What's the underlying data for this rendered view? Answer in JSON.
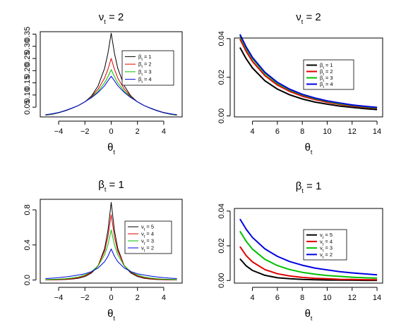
{
  "chart_data": [
    {
      "type": "line",
      "title": {
        "sym": "ν",
        "sub": "t",
        "rest": " = 2"
      },
      "xlabel": {
        "sym": "θ",
        "sub": "t"
      },
      "xlim": [
        -5.4,
        5.4
      ],
      "ylim": [
        0.01,
        0.36
      ],
      "xticks": [
        -4,
        -2,
        0,
        2,
        4
      ],
      "yticks": [
        0.05,
        0.1,
        0.15,
        0.2,
        0.25,
        0.3,
        0.35
      ],
      "ytick_labels": [
        "0.05",
        "0.10",
        "0.15",
        "0.20",
        "0.25",
        "0.30",
        "0.35"
      ],
      "legend": {
        "position": "center-right",
        "sym": "β",
        "sub": "t"
      },
      "x": [
        -5,
        -4.5,
        -4,
        -3.5,
        -3,
        -2.5,
        -2,
        -1.5,
        -1,
        -0.5,
        -0.25,
        0,
        0.25,
        0.5,
        1,
        1.5,
        2,
        2.5,
        3,
        3.5,
        4,
        4.5,
        5
      ],
      "series": [
        {
          "name": "= 1",
          "color": "#000000",
          "width": 1,
          "values": [
            0.017,
            0.021,
            0.027,
            0.035,
            0.045,
            0.057,
            0.072,
            0.096,
            0.137,
            0.21,
            0.27,
            0.354,
            0.27,
            0.21,
            0.137,
            0.096,
            0.072,
            0.057,
            0.045,
            0.035,
            0.027,
            0.021,
            0.017
          ]
        },
        {
          "name": "= 2",
          "color": "#df0000",
          "width": 1,
          "values": [
            0.018,
            0.022,
            0.028,
            0.036,
            0.046,
            0.057,
            0.072,
            0.093,
            0.124,
            0.17,
            0.205,
            0.25,
            0.205,
            0.17,
            0.124,
            0.093,
            0.072,
            0.057,
            0.046,
            0.036,
            0.028,
            0.022,
            0.018
          ]
        },
        {
          "name": "= 3",
          "color": "#00c000",
          "width": 1,
          "values": [
            0.018,
            0.022,
            0.028,
            0.036,
            0.046,
            0.057,
            0.072,
            0.091,
            0.115,
            0.15,
            0.175,
            0.204,
            0.175,
            0.15,
            0.115,
            0.091,
            0.072,
            0.057,
            0.046,
            0.036,
            0.028,
            0.022,
            0.018
          ]
        },
        {
          "name": "= 4",
          "color": "#0000e0",
          "width": 1,
          "values": [
            0.019,
            0.023,
            0.028,
            0.036,
            0.046,
            0.057,
            0.072,
            0.089,
            0.11,
            0.138,
            0.158,
            0.177,
            0.158,
            0.138,
            0.11,
            0.089,
            0.072,
            0.057,
            0.046,
            0.036,
            0.028,
            0.023,
            0.019
          ]
        }
      ]
    },
    {
      "type": "line",
      "title": {
        "sym": "ν",
        "sub": "t",
        "rest": " = 2"
      },
      "xlabel": {
        "sym": "θ",
        "sub": "t"
      },
      "xlim": [
        2.55,
        14.45
      ],
      "ylim": [
        -0.0005,
        0.0403
      ],
      "xticks": [
        4,
        6,
        8,
        10,
        12,
        14
      ],
      "yticks": [
        0.0,
        0.02,
        0.04
      ],
      "ytick_labels": [
        "0.00",
        "0.02",
        "0.04"
      ],
      "legend": {
        "position": "center-right",
        "sym": "β",
        "sub": "t"
      },
      "x": [
        3,
        3.5,
        4,
        5,
        6,
        7,
        8,
        9,
        10,
        11,
        12,
        13,
        14
      ],
      "series": [
        {
          "name": "= 1",
          "color": "#000000",
          "width": 2,
          "values": [
            0.0354,
            0.0295,
            0.0248,
            0.0182,
            0.0139,
            0.0109,
            0.0088,
            0.0072,
            0.0061,
            0.0051,
            0.0044,
            0.0038,
            0.0033
          ]
        },
        {
          "name": "= 2",
          "color": "#df0000",
          "width": 2,
          "values": [
            0.0398,
            0.0333,
            0.0282,
            0.0209,
            0.016,
            0.0127,
            0.0102,
            0.0085,
            0.0071,
            0.006,
            0.0052,
            0.0045,
            0.004
          ]
        },
        {
          "name": "= 3",
          "color": "#00c000",
          "width": 2,
          "values": [
            0.0414,
            0.0348,
            0.0296,
            0.022,
            0.0169,
            0.0134,
            0.0109,
            0.009,
            0.0076,
            0.0064,
            0.0055,
            0.0048,
            0.0042
          ]
        },
        {
          "name": "= 4",
          "color": "#0000e0",
          "width": 2,
          "values": [
            0.0422,
            0.0356,
            0.0303,
            0.0226,
            0.0174,
            0.0138,
            0.0112,
            0.0093,
            0.0078,
            0.0067,
            0.0057,
            0.005,
            0.0044
          ]
        }
      ]
    },
    {
      "type": "line",
      "title": {
        "sym": "β",
        "sub": "t",
        "rest": " = 1"
      },
      "xlabel": {
        "sym": "θ",
        "sub": "t"
      },
      "xlim": [
        -5.4,
        5.4
      ],
      "ylim": [
        -0.035,
        0.92
      ],
      "xticks": [
        -4,
        -2,
        0,
        2,
        4
      ],
      "yticks": [
        0.0,
        0.4,
        0.8
      ],
      "ytick_labels": [
        "0.0",
        "0.4",
        "0.8"
      ],
      "legend": {
        "position": "center-right",
        "sym": "ν",
        "sub": "t"
      },
      "x": [
        -5,
        -4.5,
        -4,
        -3.5,
        -3,
        -2.5,
        -2,
        -1.5,
        -1,
        -0.5,
        -0.25,
        0,
        0.25,
        0.5,
        1,
        1.5,
        2,
        2.5,
        3,
        3.5,
        4,
        4.5,
        5
      ],
      "series": [
        {
          "name": "= 5",
          "color": "#000000",
          "width": 1,
          "values": [
            0.001,
            0.002,
            0.003,
            0.006,
            0.011,
            0.02,
            0.04,
            0.08,
            0.16,
            0.36,
            0.56,
            0.885,
            0.56,
            0.36,
            0.16,
            0.08,
            0.04,
            0.02,
            0.011,
            0.006,
            0.003,
            0.002,
            0.001
          ]
        },
        {
          "name": "= 4",
          "color": "#df0000",
          "width": 1,
          "values": [
            0.002,
            0.003,
            0.005,
            0.009,
            0.015,
            0.026,
            0.048,
            0.088,
            0.165,
            0.33,
            0.49,
            0.745,
            0.49,
            0.33,
            0.165,
            0.088,
            0.048,
            0.026,
            0.015,
            0.009,
            0.005,
            0.003,
            0.002
          ]
        },
        {
          "name": "= 3",
          "color": "#00c000",
          "width": 1,
          "values": [
            0.005,
            0.007,
            0.01,
            0.015,
            0.023,
            0.036,
            0.058,
            0.095,
            0.16,
            0.29,
            0.4,
            0.57,
            0.4,
            0.29,
            0.16,
            0.095,
            0.058,
            0.036,
            0.023,
            0.015,
            0.01,
            0.007,
            0.005
          ]
        },
        {
          "name": "= 2",
          "color": "#0000e0",
          "width": 1,
          "values": [
            0.017,
            0.021,
            0.027,
            0.035,
            0.045,
            0.057,
            0.072,
            0.096,
            0.137,
            0.21,
            0.27,
            0.354,
            0.27,
            0.21,
            0.137,
            0.096,
            0.072,
            0.057,
            0.045,
            0.035,
            0.027,
            0.021,
            0.017
          ]
        }
      ]
    },
    {
      "type": "line",
      "title": {
        "sym": "β",
        "sub": "t",
        "rest": " = 1"
      },
      "xlabel": {
        "sym": "θ",
        "sub": "t"
      },
      "xlim": [
        2.55,
        14.45
      ],
      "ylim": [
        -0.0015,
        0.0415
      ],
      "xticks": [
        4,
        6,
        8,
        10,
        12,
        14
      ],
      "yticks": [
        0.0,
        0.02,
        0.04
      ],
      "ytick_labels": [
        "0.00",
        "0.02",
        "0.04"
      ],
      "legend": {
        "position": "center-right",
        "sym": "ν",
        "sub": "t"
      },
      "x": [
        3,
        3.5,
        4,
        5,
        6,
        7,
        8,
        9,
        10,
        11,
        12,
        13,
        14
      ],
      "series": [
        {
          "name": "= 5",
          "color": "#000000",
          "width": 2,
          "values": [
            0.0125,
            0.0084,
            0.0058,
            0.003,
            0.0016,
            0.001,
            0.0006,
            0.0004,
            0.0003,
            0.0002,
            0.00015,
            0.0001,
            0.0001
          ]
        },
        {
          "name": "= 4",
          "color": "#df0000",
          "width": 2,
          "values": [
            0.0195,
            0.0143,
            0.0107,
            0.0063,
            0.0039,
            0.0026,
            0.0018,
            0.0013,
            0.001,
            0.0007,
            0.0006,
            0.0005,
            0.0004
          ]
        },
        {
          "name": "= 3",
          "color": "#00c000",
          "width": 2,
          "values": [
            0.0284,
            0.0225,
            0.0181,
            0.0122,
            0.0086,
            0.0063,
            0.0047,
            0.0037,
            0.0029,
            0.0024,
            0.0019,
            0.0016,
            0.0014
          ]
        },
        {
          "name": "= 2",
          "color": "#0000e0",
          "width": 2,
          "values": [
            0.0354,
            0.0295,
            0.0248,
            0.0182,
            0.0139,
            0.0109,
            0.0088,
            0.0072,
            0.0061,
            0.0051,
            0.0044,
            0.0038,
            0.0033
          ]
        }
      ]
    }
  ]
}
